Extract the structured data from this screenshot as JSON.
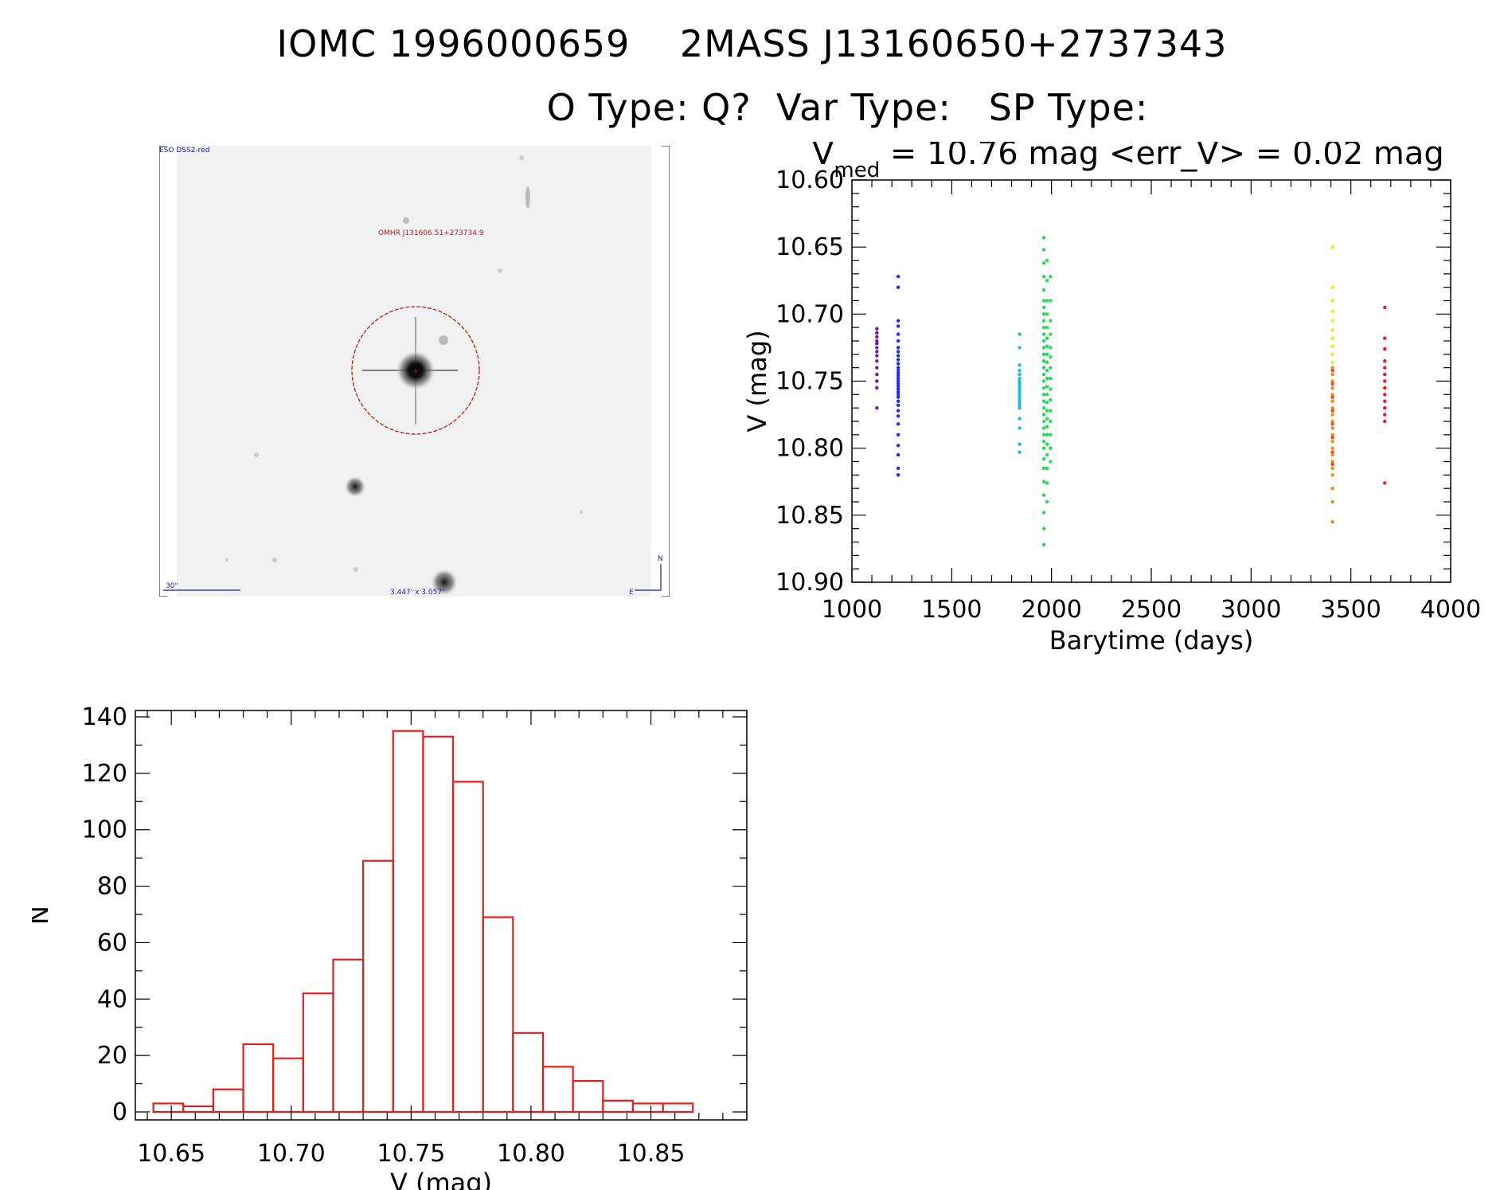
{
  "header": {
    "line1": "IOMC 1996000659    2MASS J13160650+2737343",
    "line2": "O Type: Q?  Var Type:   SP Type:"
  },
  "finder_chart": {
    "survey_label": "ESO DSS2-red",
    "object_label": "OMHR J131606.51+273734.9",
    "scale_label": "30\"",
    "fov_label": "3.447' x 3.057'",
    "north_label": "N",
    "east_label": "E",
    "colors": {
      "circle": "#b02020",
      "label_red": "#b02020",
      "label_blue": "#1a1aa8"
    }
  },
  "chart_data": [
    {
      "type": "scatter",
      "title_prefix": "V",
      "title_sub": "med",
      "title_rest": " = 10.76 mag <err_V> = 0.02 mag",
      "xlabel": "Barytime (days)",
      "ylabel": "V (mag)",
      "xlim": [
        1000,
        4000
      ],
      "ylim": [
        10.9,
        10.6
      ],
      "x_ticks": [
        1000,
        1500,
        2000,
        2500,
        3000,
        3500,
        4000
      ],
      "x_tick_labels": [
        "1000",
        "1500",
        "2000",
        "2500",
        "3000",
        "3500",
        "4000"
      ],
      "y_ticks": [
        10.6,
        10.65,
        10.7,
        10.75,
        10.8,
        10.85,
        10.9
      ],
      "y_tick_labels": [
        "10.60",
        "10.65",
        "10.70",
        "10.75",
        "10.80",
        "10.85",
        "10.90"
      ],
      "groups": [
        {
          "x": 1125,
          "color": "#6a1fa0",
          "y": [
            10.711,
            10.714,
            10.717,
            10.72,
            10.722,
            10.725,
            10.728,
            10.731,
            10.735,
            10.74,
            10.745,
            10.75,
            10.755,
            10.77
          ]
        },
        {
          "x": 1232,
          "color": "#1f2fd8",
          "y": [
            10.672,
            10.68,
            10.705,
            10.709,
            10.715,
            10.72,
            10.725,
            10.728,
            10.731,
            10.734,
            10.737,
            10.74,
            10.742,
            10.744,
            10.746,
            10.748,
            10.75,
            10.752,
            10.754,
            10.756,
            10.758,
            10.76,
            10.762,
            10.765,
            10.768,
            10.772,
            10.776,
            10.782,
            10.79,
            10.798,
            10.805,
            10.815,
            10.82
          ]
        },
        {
          "x": 1840,
          "color": "#1fb8e8",
          "y": [
            10.715,
            10.725,
            10.738,
            10.742,
            10.745,
            10.748,
            10.75,
            10.752,
            10.754,
            10.756,
            10.758,
            10.76,
            10.762,
            10.764,
            10.766,
            10.768,
            10.77,
            10.778,
            10.785,
            10.797,
            10.803
          ]
        },
        {
          "x": 1962,
          "color": "#22dd55",
          "y": [
            10.643,
            10.652,
            10.662,
            10.672,
            10.682,
            10.69,
            10.695,
            10.7,
            10.705,
            10.71,
            10.715,
            10.72,
            10.725,
            10.73,
            10.735,
            10.74,
            10.745,
            10.75,
            10.755,
            10.76,
            10.765,
            10.77,
            10.775,
            10.78,
            10.785,
            10.79,
            10.795,
            10.8,
            10.808,
            10.815,
            10.825,
            10.835,
            10.848,
            10.86,
            10.872
          ]
        },
        {
          "x": 1978,
          "color": "#22dd55",
          "y": [
            10.66,
            10.675,
            10.69,
            10.7,
            10.71,
            10.718,
            10.724,
            10.73,
            10.736,
            10.742,
            10.748,
            10.754,
            10.76,
            10.766,
            10.772,
            10.778,
            10.784,
            10.79,
            10.797,
            10.805,
            10.815,
            10.826,
            10.84
          ]
        },
        {
          "x": 1995,
          "color": "#22dd55",
          "y": [
            10.672,
            10.69,
            10.705,
            10.715,
            10.725,
            10.732,
            10.74,
            10.748,
            10.756,
            10.764,
            10.772,
            10.78,
            10.79,
            10.8,
            10.81
          ]
        },
        {
          "x": 3408,
          "color": "#e8e81f",
          "y": [
            10.65,
            10.68,
            10.69,
            10.698,
            10.705,
            10.712,
            10.718,
            10.724,
            10.73,
            10.736
          ]
        },
        {
          "x": 3408,
          "color": "#f08a1f",
          "y": [
            10.74,
            10.745,
            10.75,
            10.755,
            10.76,
            10.765,
            10.77,
            10.775,
            10.78,
            10.785,
            10.79,
            10.795,
            10.8,
            10.805,
            10.81,
            10.815,
            10.82,
            10.83,
            10.84,
            10.855
          ]
        },
        {
          "x": 3408,
          "color": "#e84a1f",
          "y": [
            10.742,
            10.752,
            10.762,
            10.772,
            10.782,
            10.792,
            10.803,
            10.812
          ]
        },
        {
          "x": 3670,
          "color": "#e02020",
          "y": [
            10.695,
            10.718,
            10.726,
            10.735,
            10.74,
            10.745,
            10.75,
            10.755,
            10.76,
            10.765,
            10.77,
            10.775,
            10.78,
            10.826
          ]
        }
      ]
    },
    {
      "type": "bar",
      "xlabel": "V (mag)",
      "ylabel": "N",
      "xlim": [
        10.635,
        10.89
      ],
      "ylim": [
        0,
        140
      ],
      "x_ticks": [
        10.65,
        10.7,
        10.75,
        10.8,
        10.85
      ],
      "x_tick_labels": [
        "10.65",
        "10.70",
        "10.75",
        "10.80",
        "10.85"
      ],
      "y_ticks": [
        0,
        20,
        40,
        60,
        80,
        100,
        120,
        140
      ],
      "y_tick_labels": [
        "0",
        "20",
        "40",
        "60",
        "80",
        "100",
        "120",
        "140"
      ],
      "bin_start": 10.6425,
      "bin_width": 0.0125,
      "counts": [
        3,
        2,
        8,
        24,
        19,
        42,
        54,
        89,
        135,
        133,
        117,
        69,
        28,
        16,
        11,
        4,
        3,
        3
      ],
      "bar_color": "#e02020"
    }
  ]
}
